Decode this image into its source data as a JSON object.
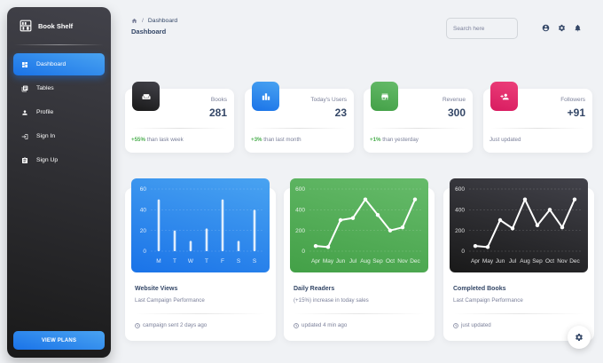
{
  "brand": {
    "name": "Book Shelf"
  },
  "sidebar": {
    "items": [
      {
        "label": "Dashboard",
        "icon": "dashboard-icon",
        "active": true
      },
      {
        "label": "Tables",
        "icon": "table-icon"
      },
      {
        "label": "Profile",
        "icon": "person-icon"
      },
      {
        "label": "Sign In",
        "icon": "login-icon"
      },
      {
        "label": "Sign Up",
        "icon": "clipboard-icon"
      }
    ],
    "cta_label": "VIEW PLANS"
  },
  "header": {
    "breadcrumb_current": "Dashboard",
    "title": "Dashboard",
    "search_placeholder": "Search here"
  },
  "stats": [
    {
      "label": "Books",
      "value": "281",
      "delta": "+55%",
      "note": "than lask week",
      "icon": "weekend-icon",
      "color": "#262626"
    },
    {
      "label": "Today's Users",
      "value": "23",
      "delta": "+3%",
      "note": "than last month",
      "icon": "leaderboard-icon",
      "color": "#1A73E8"
    },
    {
      "label": "Revenue",
      "value": "300",
      "delta": "+1%",
      "note": "than yesterday",
      "icon": "store-icon",
      "color": "#43A047"
    },
    {
      "label": "Followers",
      "value": "+91",
      "delta": "",
      "note": "Just updated",
      "icon": "person-add-icon",
      "color": "#E91E63"
    }
  ],
  "charts": [
    {
      "title": "Website Views",
      "subtitle": "Last Campaign Performance",
      "footer": "campaign sent 2 days ago"
    },
    {
      "title": "Daily Readers",
      "subtitle": "(+15%) increase in today sales",
      "footer": "updated 4 min ago"
    },
    {
      "title": "Completed Books",
      "subtitle": "Last Campaign Performance",
      "footer": "just updated"
    }
  ],
  "chart_data": [
    {
      "type": "bar",
      "categories": [
        "M",
        "T",
        "W",
        "T",
        "F",
        "S",
        "S"
      ],
      "values": [
        50,
        20,
        10,
        22,
        50,
        10,
        40
      ],
      "yticks": [
        0,
        20,
        40,
        60
      ],
      "ylim": [
        0,
        60
      ],
      "color": "#1A73E8"
    },
    {
      "type": "line",
      "categories": [
        "Apr",
        "May",
        "Jun",
        "Jul",
        "Aug",
        "Sep",
        "Oct",
        "Nov",
        "Dec"
      ],
      "values": [
        50,
        40,
        300,
        320,
        500,
        350,
        200,
        230,
        500
      ],
      "yticks": [
        0,
        200,
        400,
        600
      ],
      "ylim": [
        0,
        600
      ],
      "color": "#43A047"
    },
    {
      "type": "line",
      "categories": [
        "Apr",
        "May",
        "Jun",
        "Jul",
        "Aug",
        "Sep",
        "Oct",
        "Nov",
        "Dec"
      ],
      "values": [
        50,
        40,
        300,
        220,
        500,
        250,
        400,
        230,
        500
      ],
      "yticks": [
        0,
        200,
        400,
        600
      ],
      "ylim": [
        0,
        600
      ],
      "color": "#262626"
    }
  ]
}
